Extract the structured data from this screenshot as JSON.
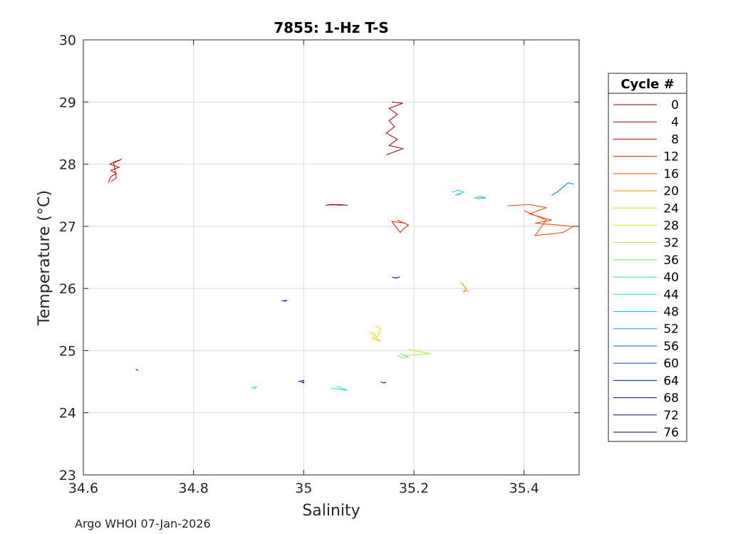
{
  "chart_data": {
    "type": "line",
    "title": "7855: 1-Hz T-S",
    "xlabel": "Salinity",
    "ylabel": "Temperature (°C)",
    "xlim": [
      34.6,
      35.5
    ],
    "ylim": [
      23,
      30
    ],
    "xticks": [
      34.6,
      34.8,
      35,
      35.2,
      35.4
    ],
    "xtick_labels": [
      "34.6",
      "34.8",
      "35",
      "35.2",
      "35.4"
    ],
    "yticks": [
      23,
      24,
      25,
      26,
      27,
      28,
      29,
      30
    ],
    "ytick_labels": [
      "23",
      "24",
      "25",
      "26",
      "27",
      "28",
      "29",
      "30"
    ],
    "grid": true,
    "legend": {
      "title": "Cycle #",
      "position": "right-outside"
    },
    "series": [
      {
        "name": "0",
        "color": "#7f0000",
        "points": [
          [
            35.08,
            27.34
          ],
          [
            35.06,
            27.35
          ],
          [
            35.04,
            27.34
          ],
          [
            35.05,
            27.35
          ],
          [
            35.07,
            27.34
          ]
        ]
      },
      {
        "name": "4",
        "color": "#a00000",
        "points": [
          [
            35.16,
            29.0
          ],
          [
            35.18,
            28.98
          ],
          [
            35.155,
            28.9
          ],
          [
            35.17,
            28.8
          ],
          [
            35.155,
            28.7
          ],
          [
            35.165,
            28.6
          ],
          [
            35.15,
            28.5
          ],
          [
            35.17,
            28.4
          ],
          [
            35.155,
            28.3
          ],
          [
            35.18,
            28.25
          ],
          [
            35.15,
            28.15
          ]
        ]
      },
      {
        "name": "8",
        "color": "#c00000",
        "points": [
          [
            34.645,
            27.7
          ],
          [
            34.65,
            27.8
          ],
          [
            34.66,
            27.85
          ],
          [
            34.65,
            27.9
          ],
          [
            34.665,
            27.95
          ],
          [
            34.648,
            28.0
          ],
          [
            34.66,
            28.05
          ],
          [
            34.67,
            28.08
          ],
          [
            34.655,
            28.02
          ],
          [
            34.66,
            27.78
          ],
          [
            34.65,
            27.72
          ]
        ]
      },
      {
        "name": "12",
        "color": "#dd1a00",
        "points": [
          [
            35.17,
            27.1
          ],
          [
            35.18,
            27.06
          ],
          [
            35.19,
            27.02
          ],
          [
            35.18,
            26.95
          ],
          [
            35.175,
            26.9
          ],
          [
            35.165,
            27.02
          ],
          [
            35.16,
            27.08
          ],
          [
            35.185,
            27.05
          ]
        ]
      },
      {
        "name": "16",
        "color": "#ee4400",
        "points": [
          [
            35.37,
            27.33
          ],
          [
            35.41,
            27.35
          ],
          [
            35.44,
            27.3
          ],
          [
            35.41,
            27.2
          ],
          [
            35.45,
            27.1
          ],
          [
            35.42,
            27.05
          ],
          [
            35.49,
            27.0
          ],
          [
            35.47,
            26.9
          ],
          [
            35.42,
            26.85
          ],
          [
            35.44,
            27.1
          ],
          [
            35.4,
            27.25
          ]
        ]
      },
      {
        "name": "20",
        "color": "#f58a00",
        "points": [
          [
            35.285,
            26.1
          ],
          [
            35.29,
            26.05
          ],
          [
            35.295,
            26.0
          ],
          [
            35.29,
            25.95
          ],
          [
            35.3,
            25.97
          ]
        ]
      },
      {
        "name": "24",
        "color": "#f0d000",
        "points": [
          [
            35.12,
            25.3
          ],
          [
            35.13,
            25.25
          ],
          [
            35.125,
            25.2
          ],
          [
            35.14,
            25.15
          ],
          [
            35.13,
            25.2
          ],
          [
            35.14,
            25.3
          ]
        ]
      },
      {
        "name": "28",
        "color": "#dcee10",
        "points": [
          [
            35.13,
            25.4
          ],
          [
            35.14,
            25.35
          ],
          [
            35.135,
            25.3
          ]
        ]
      },
      {
        "name": "32",
        "color": "#a8f030",
        "points": [
          [
            35.19,
            25.02
          ],
          [
            35.2,
            25.0
          ],
          [
            35.23,
            24.95
          ],
          [
            35.2,
            24.93
          ],
          [
            35.18,
            24.92
          ]
        ]
      },
      {
        "name": "36",
        "color": "#60ee60",
        "points": [
          [
            35.17,
            24.92
          ],
          [
            35.18,
            24.88
          ],
          [
            35.19,
            24.9
          ],
          [
            35.175,
            24.95
          ]
        ]
      },
      {
        "name": "40",
        "color": "#30e890",
        "points": [
          [
            34.905,
            24.4
          ],
          [
            34.915,
            24.42
          ],
          [
            34.91,
            24.38
          ]
        ]
      },
      {
        "name": "44",
        "color": "#20dcc0",
        "points": [
          [
            35.05,
            24.4
          ],
          [
            35.06,
            24.38
          ],
          [
            35.08,
            24.36
          ],
          [
            35.06,
            24.42
          ]
        ]
      },
      {
        "name": "48",
        "color": "#18c4e6",
        "points": [
          [
            35.27,
            27.55
          ],
          [
            35.28,
            27.58
          ],
          [
            35.29,
            27.55
          ],
          [
            35.275,
            27.5
          ],
          [
            35.285,
            27.52
          ]
        ]
      },
      {
        "name": "52",
        "color": "#10a8dc",
        "points": [
          [
            35.31,
            27.45
          ],
          [
            35.32,
            27.48
          ],
          [
            35.33,
            27.46
          ],
          [
            35.315,
            27.44
          ]
        ]
      },
      {
        "name": "56",
        "color": "#0070c8",
        "points": [
          [
            35.45,
            27.5
          ],
          [
            35.46,
            27.55
          ],
          [
            35.48,
            27.7
          ],
          [
            35.49,
            27.68
          ]
        ]
      },
      {
        "name": "60",
        "color": "#0040b0",
        "points": [
          [
            35.16,
            26.18
          ],
          [
            35.17,
            26.17
          ],
          [
            35.175,
            26.19
          ],
          [
            35.165,
            26.16
          ]
        ]
      },
      {
        "name": "64",
        "color": "#001e96",
        "points": [
          [
            34.96,
            25.8
          ],
          [
            34.97,
            25.81
          ],
          [
            34.965,
            25.79
          ]
        ]
      },
      {
        "name": "68",
        "color": "#001078",
        "points": [
          [
            34.99,
            24.5
          ],
          [
            35.0,
            24.52
          ],
          [
            35.0,
            24.48
          ],
          [
            34.995,
            24.5
          ]
        ]
      },
      {
        "name": "72",
        "color": "#000a5a",
        "points": [
          [
            34.695,
            24.7
          ],
          [
            34.7,
            24.68
          ]
        ]
      },
      {
        "name": "76",
        "color": "#000040",
        "points": [
          [
            35.14,
            24.5
          ],
          [
            35.145,
            24.48
          ],
          [
            35.15,
            24.49
          ]
        ]
      }
    ]
  },
  "footer": "Argo WHOI 07-Jan-2026"
}
